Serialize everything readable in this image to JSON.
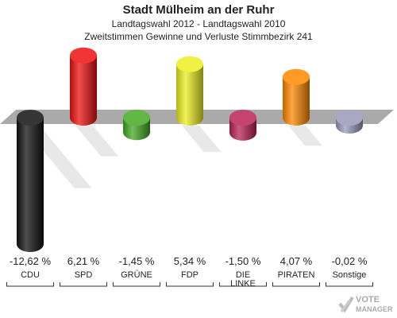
{
  "title": "Stadt Mülheim an der Ruhr",
  "subtitle": "Landtagswahl 2012 - Landtagswahl 2010",
  "subtitle2": "Zweitstimmen Gewinne und Verluste Stimmbezirk 241",
  "logo": {
    "line1": "VOTE",
    "line2": "MANAGER"
  },
  "chart_data": {
    "type": "bar",
    "categories": [
      "CDU",
      "SPD",
      "GRÜNE",
      "FDP",
      "DIE LINKE",
      "PIRATEN",
      "Sonstige"
    ],
    "category_lines": [
      [
        "CDU"
      ],
      [
        "SPD"
      ],
      [
        "GRÜNE"
      ],
      [
        "FDP"
      ],
      [
        "DIE",
        "LINKE"
      ],
      [
        "PIRATEN"
      ],
      [
        "Sonstige"
      ]
    ],
    "values": [
      -12.62,
      6.21,
      -1.45,
      5.34,
      -1.5,
      4.07,
      -0.02
    ],
    "value_labels": [
      "-12,62 %",
      "6,21 %",
      "-1,45 %",
      "5,34 %",
      "-1,50 %",
      "4,07 %",
      "-0,02 %"
    ],
    "colors": [
      "#111111",
      "#ee1111",
      "#44aa22",
      "#eeee22",
      "#bb2255",
      "#ff8800",
      "#9999bb"
    ],
    "baseline_color": "#aaaaaa",
    "title": "Stadt Mülheim an der Ruhr",
    "xlabel": "",
    "ylabel": ""
  }
}
